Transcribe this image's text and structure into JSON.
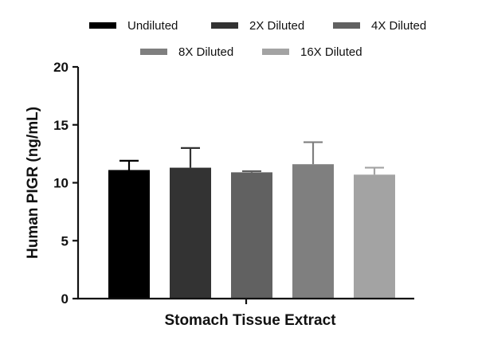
{
  "chart_data": {
    "type": "bar",
    "title": "",
    "xlabel": "Stomach Tissue Extract",
    "ylabel": "Human PIGR (ng/mL)",
    "ylim": [
      0,
      20
    ],
    "yticks": [
      0,
      5,
      10,
      15,
      20
    ],
    "grid": false,
    "legend_position": "top",
    "series": [
      {
        "name": "Undiluted",
        "value": 11.1,
        "error": 0.8,
        "color": "#000000"
      },
      {
        "name": "2X Diluted",
        "value": 11.3,
        "error": 1.7,
        "color": "#333333"
      },
      {
        "name": "4X Diluted",
        "value": 10.9,
        "error": 0.1,
        "color": "#616161"
      },
      {
        "name": "8X Diluted",
        "value": 11.6,
        "error": 1.9,
        "color": "#7f7f7f"
      },
      {
        "name": "16X Diluted",
        "value": 10.7,
        "error": 0.6,
        "color": "#a3a3a3"
      }
    ]
  }
}
